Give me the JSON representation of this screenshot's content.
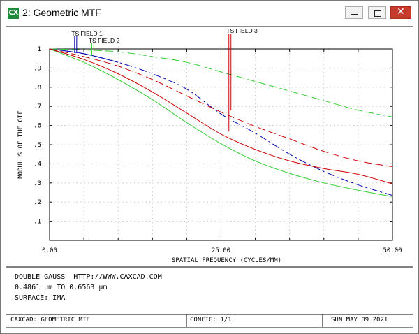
{
  "window": {
    "icon_text": "CX",
    "title": "2: Geometric MTF",
    "buttons": [
      "minimize",
      "maximize",
      "close"
    ]
  },
  "chart_data": {
    "type": "line",
    "title": "",
    "xlabel": "SPATIAL FREQUENCY (CYCLES/MM)",
    "ylabel": "MODULUS OF THE OTF",
    "xlim": [
      0,
      50
    ],
    "ylim": [
      0,
      1
    ],
    "x_ticks": [
      {
        "value": 0,
        "label": "0.00"
      },
      {
        "value": 25,
        "label": "25.00"
      },
      {
        "value": 50,
        "label": "50.00"
      }
    ],
    "y_ticks": [
      {
        "value": 1,
        "label": "1"
      },
      {
        "value": 0.9,
        "label": ".9"
      },
      {
        "value": 0.8,
        "label": ".8"
      },
      {
        "value": 0.7,
        "label": ".7"
      },
      {
        "value": 0.6,
        "label": ".6"
      },
      {
        "value": 0.5,
        "label": ".5"
      },
      {
        "value": 0.4,
        "label": ".4"
      },
      {
        "value": 0.3,
        "label": ".3"
      },
      {
        "value": 0.2,
        "label": ".2"
      },
      {
        "value": 0.1,
        "label": ".1"
      }
    ],
    "grid": true,
    "grid_divisions": 10,
    "series": [
      {
        "field": 1,
        "type": "tangential",
        "color": "#0000b4",
        "dash": "long-short",
        "x": [
          0,
          5,
          10,
          15,
          20,
          25,
          30,
          35,
          40,
          45,
          50
        ],
        "y": [
          1,
          0.975,
          0.93,
          0.87,
          0.79,
          0.66,
          0.56,
          0.45,
          0.36,
          0.29,
          0.235
        ]
      },
      {
        "field": 1,
        "type": "sagittal",
        "color": "#0000b4",
        "dash": "solid",
        "x": [
          0,
          5,
          10
        ],
        "y": [
          1,
          0.975,
          0.93
        ]
      },
      {
        "field": 2,
        "type": "tangential",
        "color": "#2ecc2e",
        "dash": "long",
        "x": [
          0,
          5,
          10,
          15,
          20,
          25,
          30,
          35,
          40,
          45,
          50
        ],
        "y": [
          1,
          0.995,
          0.985,
          0.96,
          0.93,
          0.88,
          0.83,
          0.78,
          0.73,
          0.68,
          0.645
        ]
      },
      {
        "field": 2,
        "type": "sagittal",
        "color": "#2ecc2e",
        "dash": "solid",
        "x": [
          0,
          5,
          10,
          15,
          20,
          25,
          30,
          35,
          40,
          45,
          50
        ],
        "y": [
          1,
          0.93,
          0.84,
          0.735,
          0.615,
          0.505,
          0.415,
          0.35,
          0.3,
          0.262,
          0.228
        ]
      },
      {
        "field": 3,
        "type": "tangential",
        "color": "#cc0000",
        "dash": "long",
        "x": [
          0,
          5,
          10,
          15,
          20,
          25,
          30,
          35,
          40,
          45,
          50
        ],
        "y": [
          1,
          0.96,
          0.91,
          0.84,
          0.755,
          0.67,
          0.595,
          0.53,
          0.465,
          0.415,
          0.385
        ]
      },
      {
        "field": 3,
        "type": "sagittal",
        "color": "#cc0000",
        "dash": "solid",
        "x": [
          0,
          5,
          10,
          15,
          20,
          25,
          30,
          35,
          40,
          45,
          50
        ],
        "y": [
          1,
          0.945,
          0.87,
          0.775,
          0.665,
          0.555,
          0.475,
          0.415,
          0.375,
          0.345,
          0.295
        ]
      }
    ],
    "field_markers": [
      {
        "label": "TS FIELD 1",
        "color": "#0000b4",
        "x": 3.8
      },
      {
        "label": "TS FIELD 2",
        "color": "#2ecc2e",
        "x": 6.3
      },
      {
        "label": "TS FIELD 3",
        "color": "#cc0000",
        "x": 26.3
      }
    ]
  },
  "info": {
    "lines": [
      "DOUBLE GAUSS  HTTP://WWW.CAXCAD.COM",
      "0.4861 µm TO 0.6563 µm",
      "SURFACE: IMA"
    ]
  },
  "footer": {
    "left": "CAXCAD: GEOMETRIC MTF",
    "center": "CONFIG: 1/1",
    "right": "SUN MAY 09 2021"
  }
}
